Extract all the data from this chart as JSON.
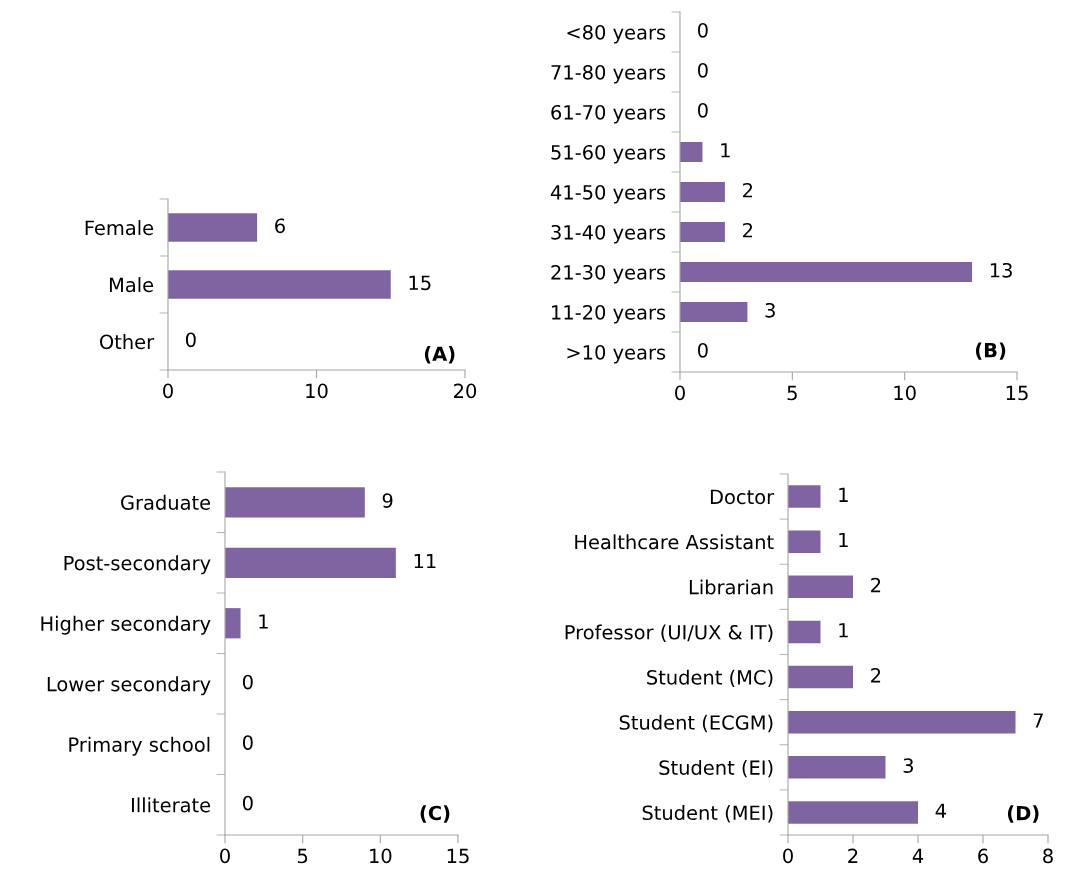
{
  "chart_data": [
    {
      "type": "bar",
      "orientation": "horizontal",
      "categories": [
        "Female",
        "Male",
        "Other"
      ],
      "values": [
        6,
        15,
        0
      ],
      "color": "#8064a2",
      "xlim": [
        0,
        20
      ],
      "xticks": [
        0,
        10,
        20
      ],
      "data_labels": true,
      "grid": false,
      "legend": false,
      "annotations": [
        "(A)"
      ]
    },
    {
      "type": "bar",
      "orientation": "horizontal",
      "categories": [
        "<80 years",
        "71-80 years",
        "61-70 years",
        "51-60 years",
        "41-50 years",
        "31-40 years",
        "21-30 years",
        "11-20 years",
        ">10 years"
      ],
      "values": [
        0,
        0,
        0,
        1,
        2,
        2,
        13,
        3,
        0
      ],
      "color": "#8064a2",
      "xlim": [
        0,
        15
      ],
      "xticks": [
        0,
        5,
        10,
        15
      ],
      "data_labels": true,
      "grid": false,
      "legend": false,
      "annotations": [
        "(B)"
      ]
    },
    {
      "type": "bar",
      "orientation": "horizontal",
      "categories": [
        "Graduate",
        "Post-secondary",
        "Higher secondary",
        "Lower secondary",
        "Primary school",
        "Illiterate"
      ],
      "values": [
        9,
        11,
        1,
        0,
        0,
        0
      ],
      "color": "#8064a2",
      "xlim": [
        0,
        15
      ],
      "xticks": [
        0,
        5,
        10,
        15
      ],
      "data_labels": true,
      "grid": false,
      "legend": false,
      "annotations": [
        "(C)"
      ]
    },
    {
      "type": "bar",
      "orientation": "horizontal",
      "categories": [
        "Doctor",
        "Healthcare Assistant",
        "Librarian",
        "Professor (UI/UX & IT)",
        "Student (MC)",
        "Student (ECGM)",
        "Student (EI)",
        "Student (MEI)"
      ],
      "values": [
        1,
        1,
        2,
        1,
        2,
        7,
        3,
        4
      ],
      "color": "#8064a2",
      "xlim": [
        0,
        8
      ],
      "xticks": [
        0,
        2,
        4,
        6,
        8
      ],
      "data_labels": true,
      "grid": false,
      "legend": false,
      "annotations": [
        "(D)"
      ]
    }
  ]
}
